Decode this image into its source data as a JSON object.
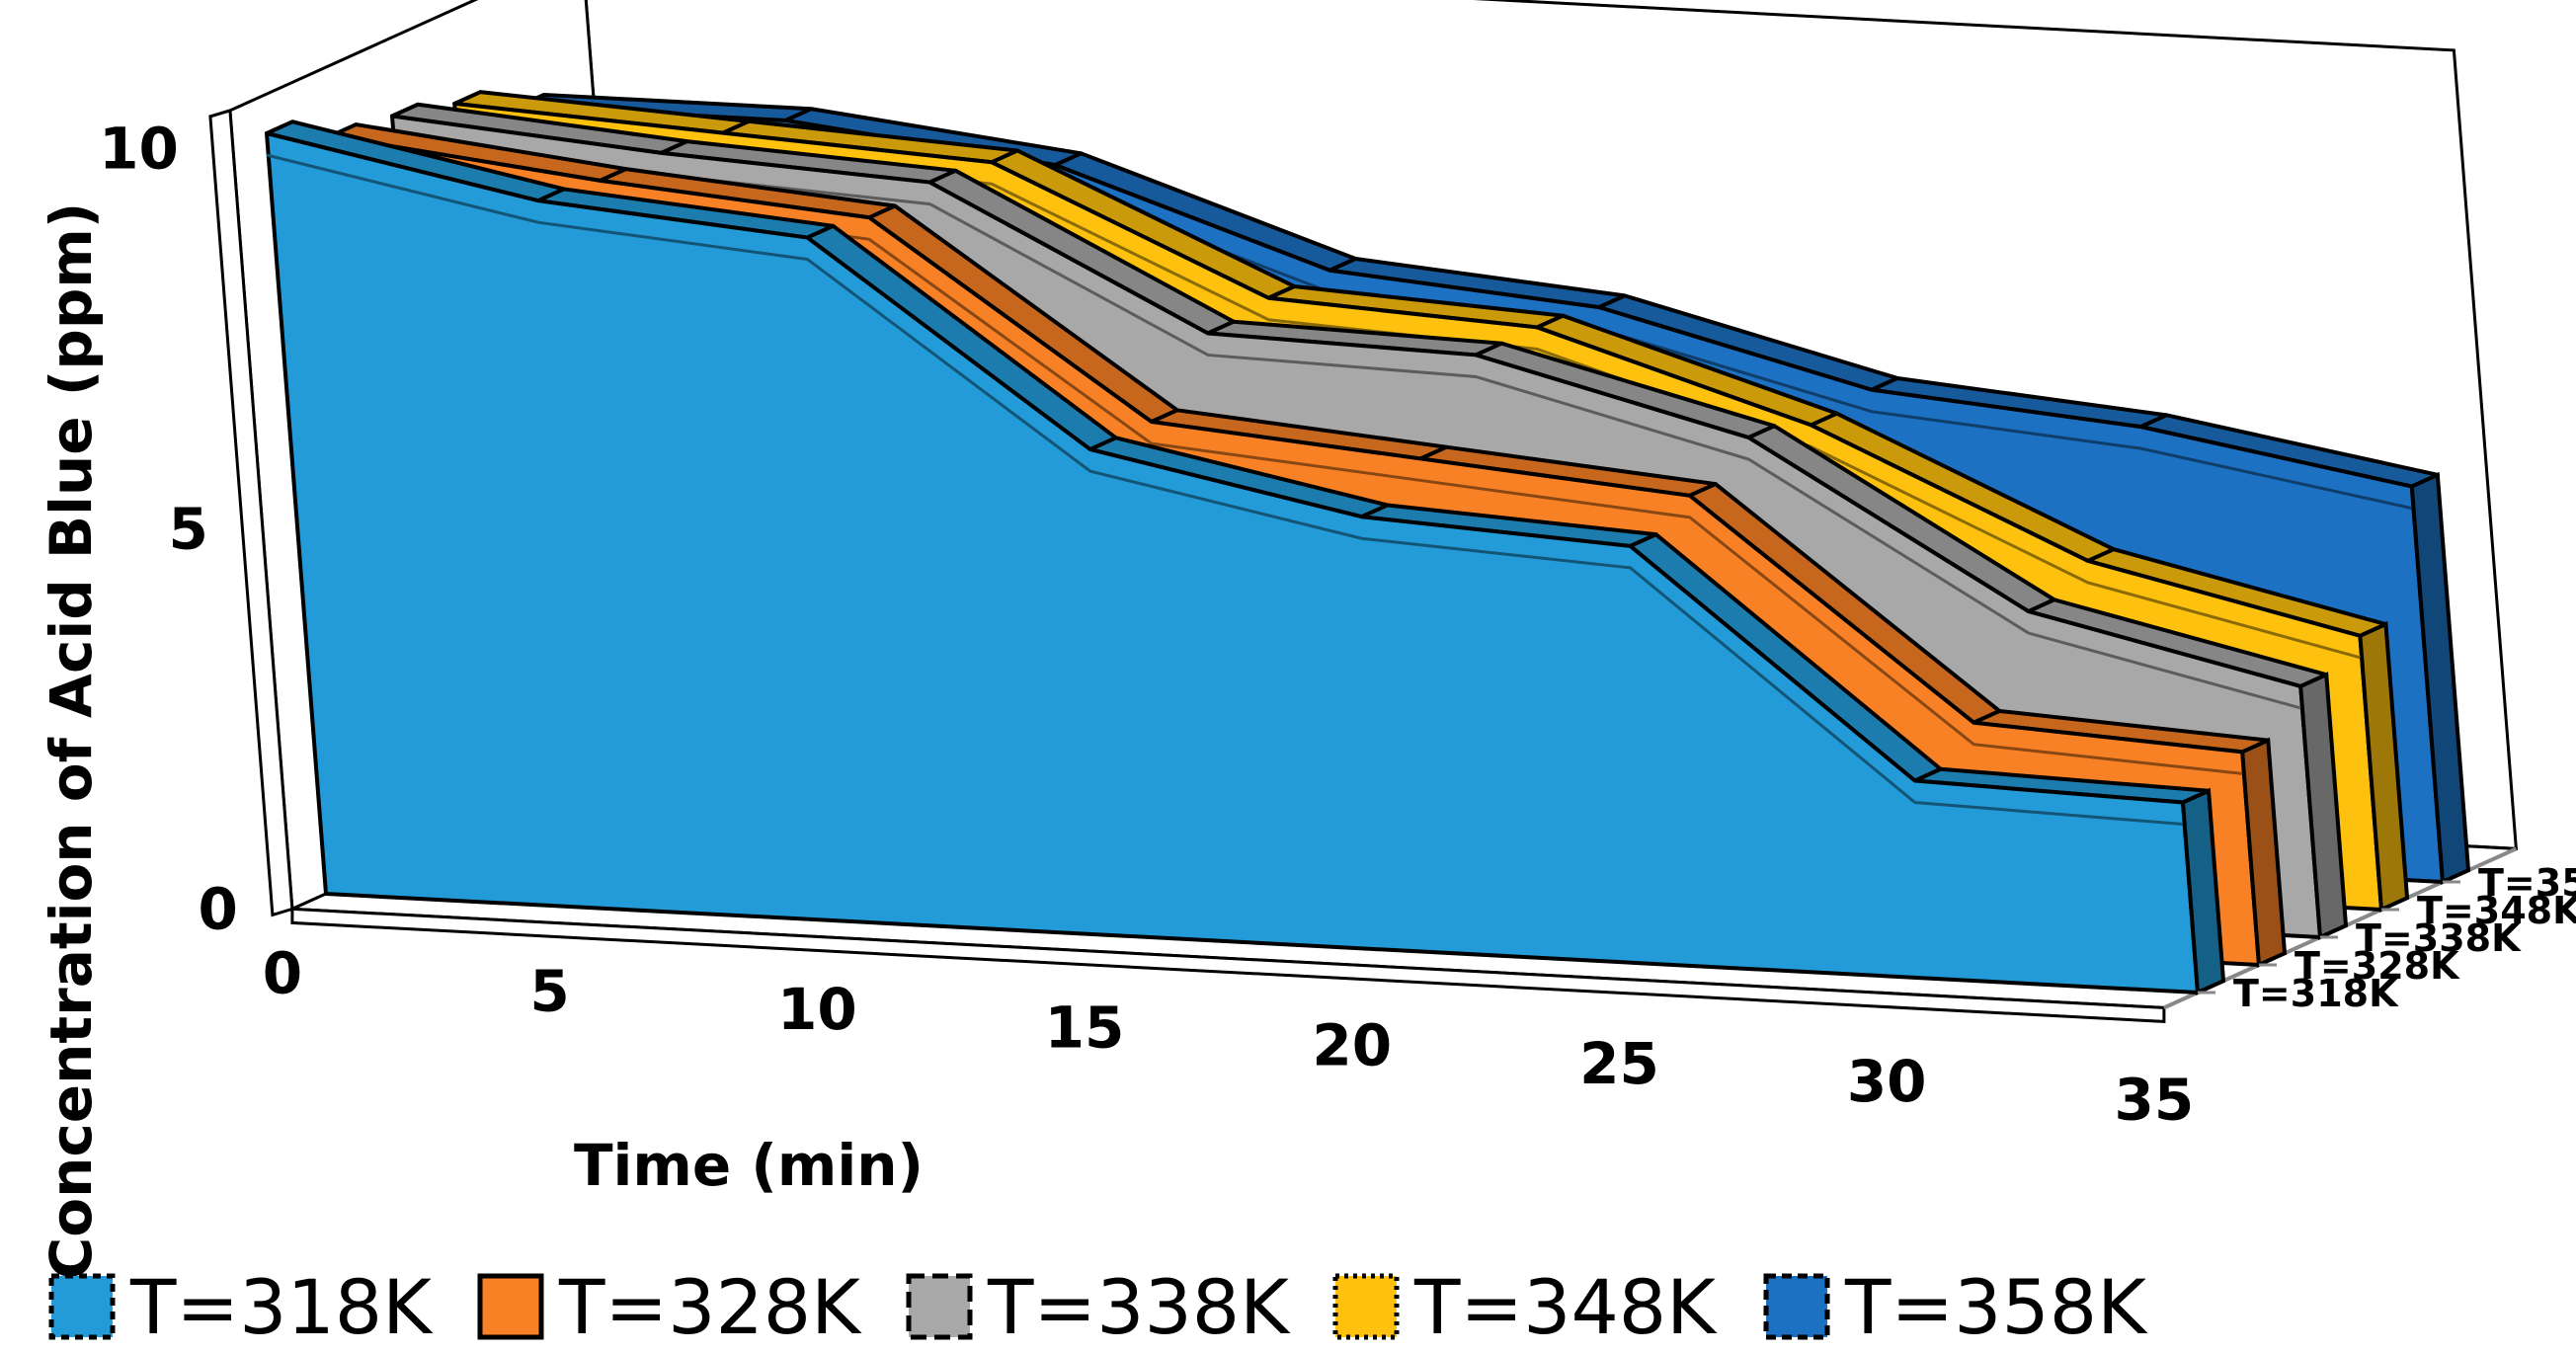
{
  "chart_data": {
    "type": "area",
    "style": "3d-stacked-ribbons",
    "title": "",
    "xlabel": "Time (min)",
    "ylabel": "Concentration of Acid Blue (ppm)",
    "x": [
      0,
      5,
      10,
      15,
      20,
      25,
      30,
      35
    ],
    "x_tick_labels": [
      "0",
      "5",
      "10",
      "15",
      "20",
      "25",
      "30",
      "35"
    ],
    "y_tick_labels": [
      "0",
      "5",
      "10"
    ],
    "ylim": [
      0,
      10
    ],
    "series": [
      {
        "name": "T=318K",
        "color": "#229bd8",
        "values": [
          10.0,
          9.3,
          9.0,
          6.4,
          5.7,
          5.5,
          2.6,
          2.5
        ]
      },
      {
        "name": "T=328K",
        "color": "#f98125",
        "values": [
          9.6,
          9.2,
          8.9,
          6.4,
          6.1,
          5.8,
          3.0,
          2.8
        ]
      },
      {
        "name": "T=338K",
        "color": "#a8a8a8",
        "values": [
          9.5,
          9.2,
          9.0,
          7.2,
          7.1,
          6.2,
          4.1,
          3.3
        ]
      },
      {
        "name": "T=348K",
        "color": "#fdc10e",
        "values": [
          9.3,
          9.1,
          8.9,
          7.3,
          7.1,
          6.0,
          4.4,
          3.6
        ]
      },
      {
        "name": "T=358K",
        "color": "#1c71c3",
        "values": [
          8.9,
          8.9,
          8.5,
          7.3,
          7.0,
          6.1,
          5.8,
          5.2
        ]
      }
    ],
    "legend_position": "bottom"
  }
}
